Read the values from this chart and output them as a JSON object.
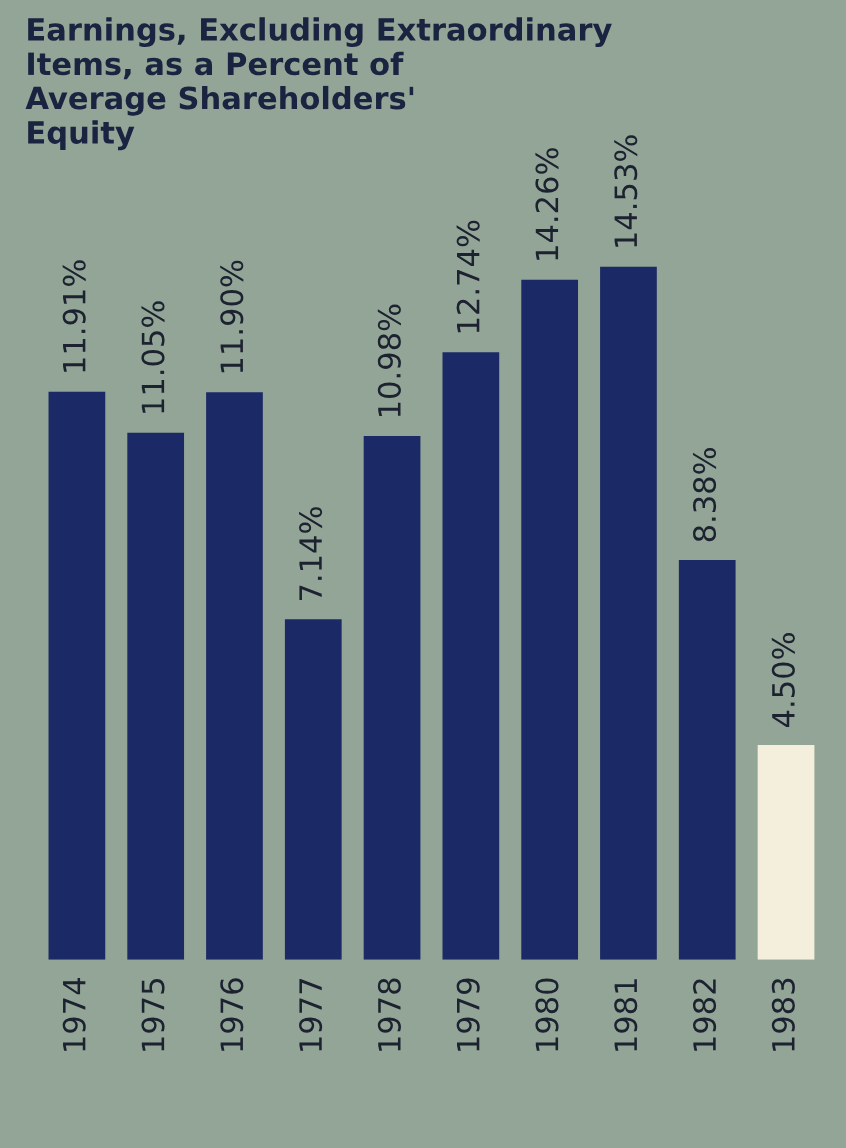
{
  "chart_data": {
    "type": "bar",
    "title": "Earnings, Excluding Extraordinary\nItems, as a Percent of\nAverage Shareholders'\nEquity",
    "categories": [
      "1974",
      "1975",
      "1976",
      "1977",
      "1978",
      "1979",
      "1980",
      "1981",
      "1982",
      "1983"
    ],
    "values": [
      11.91,
      11.05,
      11.9,
      7.14,
      10.98,
      12.74,
      14.26,
      14.53,
      8.38,
      4.5
    ],
    "value_labels": [
      "11.91%",
      "11.05%",
      "11.90%",
      "7.14%",
      "10.98%",
      "12.74%",
      "14.26%",
      "14.53%",
      "8.38%",
      "4.50%"
    ],
    "colors": [
      "#1b2a66",
      "#1b2a66",
      "#1b2a66",
      "#1b2a66",
      "#1b2a66",
      "#1b2a66",
      "#1b2a66",
      "#1b2a66",
      "#1b2a66",
      "#f4efdc"
    ]
  }
}
